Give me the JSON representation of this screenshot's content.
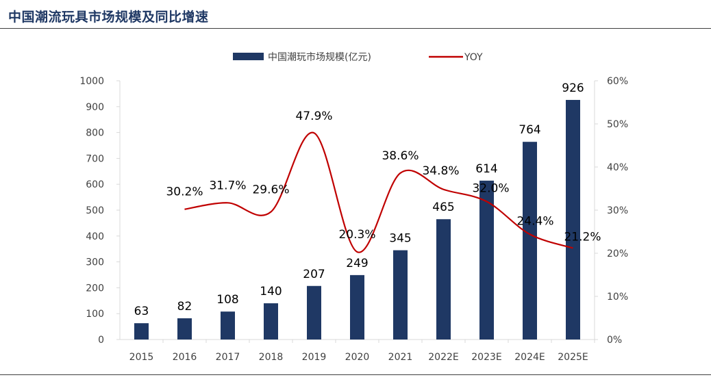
{
  "header": {
    "title": "中国潮流玩具市场规模及同比增速"
  },
  "legend": {
    "bar_label": "中国潮玩市场规模(亿元)",
    "line_label": "YOY",
    "placement": "top-center"
  },
  "colors": {
    "bar": "#1f3864",
    "line": "#c00000",
    "axis_text": "#404040",
    "rule": "#3d3d3d"
  },
  "chart_data": {
    "type": "bar",
    "categories": [
      "2015",
      "2016",
      "2017",
      "2018",
      "2019",
      "2020",
      "2021",
      "2022E",
      "2023E",
      "2024E",
      "2025E"
    ],
    "series": [
      {
        "name": "中国潮玩市场规模(亿元)",
        "type": "bar",
        "axis": "left",
        "values": [
          63,
          82,
          108,
          140,
          207,
          249,
          345,
          465,
          614,
          764,
          926
        ],
        "labels": [
          "63",
          "82",
          "108",
          "140",
          "207",
          "249",
          "345",
          "465",
          "614",
          "764",
          "926"
        ]
      },
      {
        "name": "YOY",
        "type": "line",
        "axis": "right",
        "smooth": true,
        "values": [
          null,
          30.2,
          31.7,
          29.6,
          47.9,
          20.3,
          38.6,
          34.8,
          32.0,
          24.4,
          21.2
        ],
        "labels": [
          "",
          "30.2%",
          "31.7%",
          "29.6%",
          "47.9%",
          "20.3%",
          "38.6%",
          "34.8%",
          "32.0%",
          "24.4%",
          "21.2%"
        ]
      }
    ],
    "y_left": {
      "min": 0,
      "max": 1000,
      "ticks": [
        "0",
        "100",
        "200",
        "300",
        "400",
        "500",
        "600",
        "700",
        "800",
        "900",
        "1000"
      ]
    },
    "y_right": {
      "min": 0,
      "max": 60,
      "ticks": [
        "0%",
        "10%",
        "20%",
        "30%",
        "40%",
        "50%",
        "60%"
      ]
    },
    "xlabel": "",
    "ylabel": "",
    "grid": false
  }
}
